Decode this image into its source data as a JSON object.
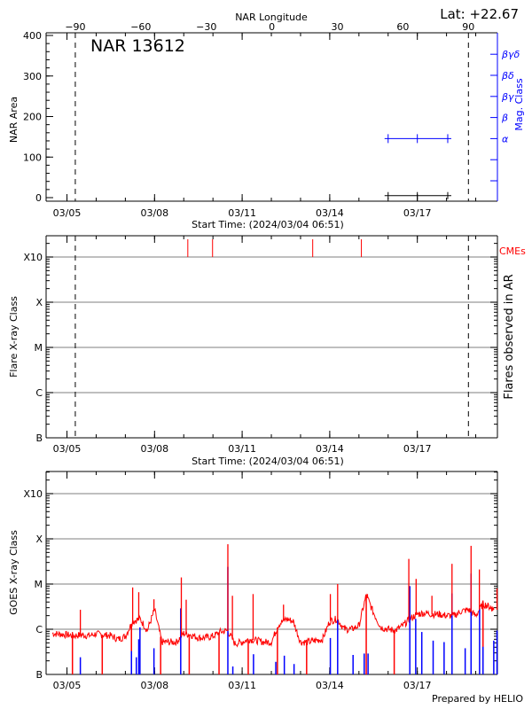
{
  "header": {
    "lat_label": "Lat: +22.67"
  },
  "footer": {
    "prepared_by": "Prepared by HELIO"
  },
  "colors": {
    "area": "#000000",
    "mag_class": "#0000ff",
    "cme": "#ff0000",
    "goes_long": "#ff0000",
    "goes_short": "#0000ff",
    "grid": "#999999"
  },
  "chart_data": [
    {
      "type": "line",
      "title": "NAR 13612",
      "xlabel": "Start Time: (2024/03/04 06:51)",
      "ylabel": "NAR Area",
      "y2label": "Mag. Class",
      "top_xlabel": "NAR Longitude",
      "top_xticks": [
        -90,
        -60,
        -30,
        0,
        30,
        60,
        90
      ],
      "xlim": [
        "03/04 06:51",
        "03/19 17:50"
      ],
      "xticks": [
        "03/05",
        "03/08",
        "03/11",
        "03/14",
        "03/17"
      ],
      "ylim": [
        0,
        400
      ],
      "yticks": [
        0,
        100,
        200,
        300,
        400
      ],
      "y2ticks": [
        "",
        "",
        "α",
        "β",
        "βγ",
        "βδ",
        "βγδ"
      ],
      "limb_crossings": [
        "03/05 06:51",
        "03/18 18:00"
      ],
      "series": [
        {
          "x": [
            "03/16 00:00",
            "03/17 00:00",
            "03/18 01:00"
          ],
          "area": [
            5,
            5,
            5
          ],
          "mag_class": [
            "α",
            "α",
            "α"
          ]
        }
      ]
    },
    {
      "type": "scatter",
      "xlabel": "Start Time: (2024/03/04 06:51)",
      "ylabel": "Flare X-ray Class",
      "y2label": "Flares observed in AR",
      "cme_label": "CMEs",
      "xlim": [
        "03/04 06:51",
        "03/19 17:50"
      ],
      "xticks": [
        "03/05",
        "03/08",
        "03/11",
        "03/14",
        "03/17"
      ],
      "yscale": "log",
      "ylim": [
        1e-07,
        0.01
      ],
      "yticks": [
        "B",
        "C",
        "M",
        "X",
        "X10"
      ],
      "grid": true,
      "limb_crossings": [
        "03/05 06:51",
        "03/18 18:00"
      ],
      "cme_times": [
        "03/09 03:20",
        "03/09 23:40",
        "03/13 10:00",
        "03/15 02:00"
      ],
      "flares": []
    },
    {
      "type": "line",
      "ylabel": "GOES X-ray Class",
      "xlim": [
        "03/04 06:51",
        "03/19 17:50"
      ],
      "xticks": [
        "03/05",
        "03/08",
        "03/11",
        "03/14",
        "03/17"
      ],
      "yscale": "log",
      "ylim": [
        1e-07,
        0.01
      ],
      "yticks": [
        "B",
        "C",
        "M",
        "X",
        "X10"
      ],
      "grid": true,
      "long_channel": {
        "x": [
          "03/04 12:00",
          "03/04 18:00",
          "03/05 00:00",
          "03/05 06:00",
          "03/05 12:00",
          "03/05 18:00",
          "03/06 00:00",
          "03/06 06:00",
          "03/06 12:00",
          "03/06 18:00",
          "03/07 00:00",
          "03/07 06:00",
          "03/07 12:00",
          "03/07 18:00",
          "03/08 00:00",
          "03/08 06:00",
          "03/08 12:00",
          "03/08 18:00",
          "03/09 00:00",
          "03/09 06:00",
          "03/09 12:00",
          "03/09 18:00",
          "03/10 00:00",
          "03/10 06:00",
          "03/10 12:00",
          "03/10 18:00",
          "03/11 00:00",
          "03/11 06:00",
          "03/11 12:00",
          "03/11 18:00",
          "03/12 00:00",
          "03/12 06:00",
          "03/12 12:00",
          "03/12 18:00",
          "03/13 00:00",
          "03/13 06:00",
          "03/13 12:00",
          "03/13 18:00",
          "03/14 00:00",
          "03/14 06:00",
          "03/14 12:00",
          "03/14 18:00",
          "03/15 00:00",
          "03/15 06:00",
          "03/15 12:00",
          "03/15 18:00",
          "03/16 00:00",
          "03/16 06:00",
          "03/16 12:00",
          "03/16 18:00",
          "03/17 00:00",
          "03/17 06:00",
          "03/17 12:00",
          "03/17 18:00",
          "03/18 00:00",
          "03/18 06:00",
          "03/18 12:00",
          "03/18 18:00",
          "03/19 00:00",
          "03/19 06:00",
          "03/19 12:00",
          "03/19 15:00"
        ],
        "flux": [
          8.1e-07,
          7.8e-07,
          7.5e-07,
          7.2e-07,
          7.5e-07,
          7.2e-07,
          7.9e-07,
          7.5e-07,
          7.2e-07,
          6e-07,
          7e-07,
          1.5e-06,
          1.7e-06,
          9.4e-07,
          2.7e-06,
          5.2e-07,
          5.2e-07,
          5.2e-07,
          8.1e-07,
          7.5e-07,
          6.5e-07,
          6.5e-07,
          7e-07,
          8.7e-07,
          9.4e-07,
          4.8e-07,
          5.2e-07,
          6e-07,
          5.6e-07,
          5.2e-07,
          5.2e-07,
          1.27e-06,
          1.7e-06,
          1.5e-06,
          5.2e-07,
          5.2e-07,
          5.6e-07,
          6e-07,
          1.5e-06,
          1.7e-06,
          1e-06,
          1e-06,
          1.2e-06,
          5.7e-06,
          2.3e-06,
          1.1e-06,
          1e-06,
          9.4e-07,
          1.2e-06,
          1.7e-06,
          2.15e-06,
          2.3e-06,
          2.15e-06,
          2.15e-06,
          2e-06,
          2e-06,
          2.5e-06,
          2.7e-06,
          2e-06,
          3.65e-06,
          3.1e-06,
          2.7e-06
        ],
        "peaks": [
          {
            "x": "03/05 11:00",
            "flux": 2.7e-06
          },
          {
            "x": "03/07 06:00",
            "flux": 8.4e-06
          },
          {
            "x": "03/07 11:00",
            "flux": 6.6e-06
          },
          {
            "x": "03/07 23:30",
            "flux": 4.6e-06
          },
          {
            "x": "03/08 22:00",
            "flux": 1.4e-05
          },
          {
            "x": "03/09 02:00",
            "flux": 4.5e-06
          },
          {
            "x": "03/10 12:15",
            "flux": 7.6e-05
          },
          {
            "x": "03/10 16:00",
            "flux": 5.5e-06
          },
          {
            "x": "03/11 09:00",
            "flux": 6e-06
          },
          {
            "x": "03/12 10:00",
            "flux": 3.5e-06
          },
          {
            "x": "03/14 00:30",
            "flux": 6e-06
          },
          {
            "x": "03/14 06:30",
            "flux": 1e-05
          },
          {
            "x": "03/15 07:00",
            "flux": 6e-06
          },
          {
            "x": "03/16 17:00",
            "flux": 3.6e-05
          },
          {
            "x": "03/16 23:00",
            "flux": 1.3e-05
          },
          {
            "x": "03/17 12:00",
            "flux": 5.5e-06
          },
          {
            "x": "03/18 04:30",
            "flux": 2.8e-05
          },
          {
            "x": "03/18 20:10",
            "flux": 7e-05
          },
          {
            "x": "03/19 03:00",
            "flux": 2.1e-05
          },
          {
            "x": "03/19 17:30",
            "flux": 8e-06
          }
        ],
        "gaps": [
          "03/05 04:30",
          "03/06 05:00",
          "03/07 05:00",
          "03/08 05:00",
          "03/09 04:30",
          "03/10 05:00",
          "03/11 05:00",
          "03/12 05:00",
          "03/13 05:00",
          "03/15 06:00",
          "03/16 05:00",
          "03/19 06:00"
        ]
      },
      "short_channel": {
        "x": [
          "03/05 11:00",
          "03/07 05:00",
          "03/07 09:00",
          "03/07 11:00",
          "03/07 12:00",
          "03/07 23:30",
          "03/08 21:30",
          "03/10 12:15",
          "03/10 16:20",
          "03/11 09:20",
          "03/12 03:40",
          "03/12 10:40",
          "03/12 18:40",
          "03/14 00:30",
          "03/14 06:30",
          "03/14 19:10",
          "03/15 04:20",
          "03/15 07:30",
          "03/16 17:50",
          "03/16 22:40",
          "03/17 03:40",
          "03/17 13:00",
          "03/17 22:00",
          "03/18 04:30",
          "03/18 15:20",
          "03/18 20:10",
          "03/19 03:10",
          "03/19 06:00",
          "03/19 14:50",
          "03/19 17:30"
        ],
        "flux": [
          2.4e-07,
          3.3e-07,
          2.4e-07,
          6e-07,
          1.1e-06,
          3.8e-07,
          2.9e-06,
          2.4e-05,
          1.5e-07,
          2.8e-07,
          1.9e-07,
          2.6e-07,
          1.7e-07,
          6.4e-07,
          1.6e-06,
          2.7e-07,
          2.9e-07,
          2.9e-07,
          9e-06,
          1.7e-06,
          8.7e-07,
          5.6e-07,
          5.2e-07,
          6.2e-06,
          3.8e-07,
          1.7e-05,
          2.9e-06,
          4.1e-07,
          5.6e-07,
          9.4e-07
        ]
      }
    }
  ]
}
